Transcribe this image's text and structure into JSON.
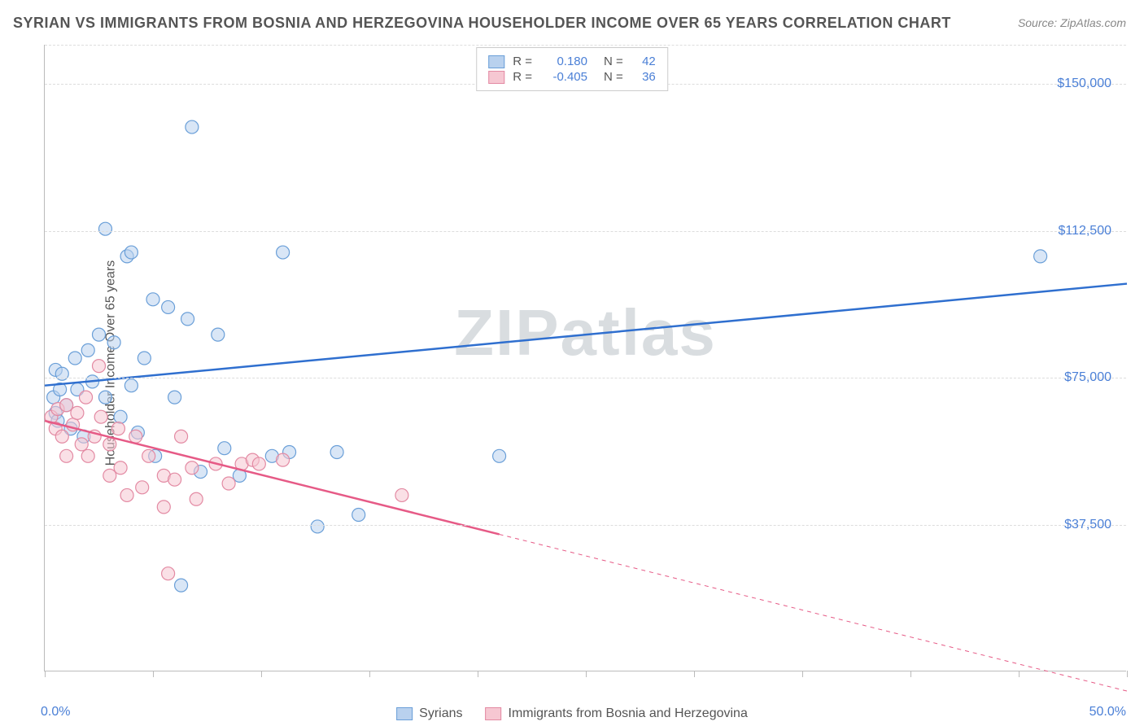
{
  "title": "SYRIAN VS IMMIGRANTS FROM BOSNIA AND HERZEGOVINA HOUSEHOLDER INCOME OVER 65 YEARS CORRELATION CHART",
  "source": "Source: ZipAtlas.com",
  "watermark": "ZIPatlas",
  "yaxis_title": "Householder Income Over 65 years",
  "chart": {
    "type": "scatter",
    "background_color": "#ffffff",
    "grid_color": "#dddddd",
    "xlim": [
      0,
      50
    ],
    "ylim": [
      0,
      160000
    ],
    "x_min_label": "0.0%",
    "x_max_label": "50.0%",
    "y_ticks": [
      37500,
      75000,
      112500,
      150000
    ],
    "y_tick_labels": [
      "$37,500",
      "$75,000",
      "$112,500",
      "$150,000"
    ],
    "x_tick_positions": [
      0,
      5,
      10,
      15,
      20,
      25,
      30,
      35,
      40,
      45,
      50
    ],
    "marker_radius": 8,
    "marker_opacity": 0.55,
    "line_width": 2.5,
    "series": [
      {
        "name": "Syrians",
        "color_fill": "#b9d1ee",
        "color_stroke": "#6a9fd8",
        "line_color": "#2f6fcf",
        "R": "0.180",
        "N": "42",
        "points": [
          [
            0.4,
            70000
          ],
          [
            0.5,
            66000
          ],
          [
            0.5,
            77000
          ],
          [
            0.6,
            64000
          ],
          [
            0.7,
            72000
          ],
          [
            0.8,
            76000
          ],
          [
            1.0,
            68000
          ],
          [
            1.2,
            62000
          ],
          [
            1.4,
            80000
          ],
          [
            1.5,
            72000
          ],
          [
            1.8,
            60000
          ],
          [
            2.0,
            82000
          ],
          [
            2.2,
            74000
          ],
          [
            2.5,
            86000
          ],
          [
            2.8,
            113000
          ],
          [
            2.8,
            70000
          ],
          [
            3.2,
            84000
          ],
          [
            3.5,
            65000
          ],
          [
            3.8,
            106000
          ],
          [
            4.0,
            73000
          ],
          [
            4.0,
            107000
          ],
          [
            4.3,
            61000
          ],
          [
            4.6,
            80000
          ],
          [
            5.0,
            95000
          ],
          [
            5.1,
            55000
          ],
          [
            5.7,
            93000
          ],
          [
            6.0,
            70000
          ],
          [
            6.3,
            22000
          ],
          [
            6.6,
            90000
          ],
          [
            6.8,
            139000
          ],
          [
            7.2,
            51000
          ],
          [
            8.0,
            86000
          ],
          [
            8.3,
            57000
          ],
          [
            9.0,
            50000
          ],
          [
            10.5,
            55000
          ],
          [
            11.0,
            107000
          ],
          [
            11.3,
            56000
          ],
          [
            12.6,
            37000
          ],
          [
            13.5,
            56000
          ],
          [
            14.5,
            40000
          ],
          [
            21.0,
            55000
          ],
          [
            46.0,
            106000
          ]
        ],
        "trend": {
          "x1": 0,
          "y1": 73000,
          "x2": 50,
          "y2": 99000,
          "solid_until_x": 50
        }
      },
      {
        "name": "Immigrants from Bosnia and Herzegovina",
        "color_fill": "#f6c7d2",
        "color_stroke": "#e38aa3",
        "line_color": "#e65a86",
        "R": "-0.405",
        "N": "36",
        "points": [
          [
            0.3,
            65000
          ],
          [
            0.5,
            62000
          ],
          [
            0.6,
            67000
          ],
          [
            0.8,
            60000
          ],
          [
            1.0,
            68000
          ],
          [
            1.0,
            55000
          ],
          [
            1.3,
            63000
          ],
          [
            1.5,
            66000
          ],
          [
            1.7,
            58000
          ],
          [
            1.9,
            70000
          ],
          [
            2.0,
            55000
          ],
          [
            2.3,
            60000
          ],
          [
            2.5,
            78000
          ],
          [
            2.6,
            65000
          ],
          [
            3.0,
            58000
          ],
          [
            3.0,
            50000
          ],
          [
            3.4,
            62000
          ],
          [
            3.5,
            52000
          ],
          [
            3.8,
            45000
          ],
          [
            4.2,
            60000
          ],
          [
            4.5,
            47000
          ],
          [
            4.8,
            55000
          ],
          [
            5.5,
            50000
          ],
          [
            5.5,
            42000
          ],
          [
            5.7,
            25000
          ],
          [
            6.0,
            49000
          ],
          [
            6.3,
            60000
          ],
          [
            6.8,
            52000
          ],
          [
            7.0,
            44000
          ],
          [
            7.9,
            53000
          ],
          [
            8.5,
            48000
          ],
          [
            9.1,
            53000
          ],
          [
            9.6,
            54000
          ],
          [
            9.9,
            53000
          ],
          [
            11.0,
            54000
          ],
          [
            16.5,
            45000
          ]
        ],
        "trend": {
          "x1": 0,
          "y1": 64000,
          "x2": 50,
          "y2": -5000,
          "solid_until_x": 21
        }
      }
    ]
  },
  "legend_top_labels": {
    "R": "R =",
    "N": "N ="
  },
  "legend_bottom": [
    "Syrians",
    "Immigrants from Bosnia and Herzegovina"
  ]
}
